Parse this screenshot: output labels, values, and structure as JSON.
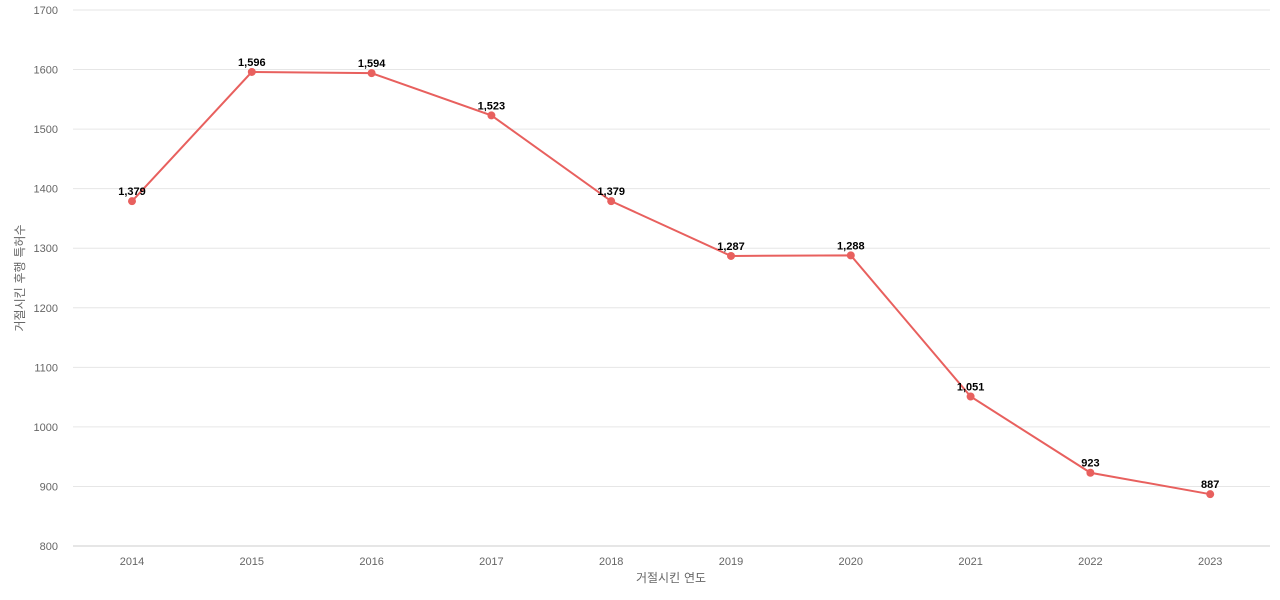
{
  "chart_data": {
    "type": "line",
    "title": "",
    "xlabel": "거절시킨 연도",
    "ylabel": "거절시킨 후행 특허수",
    "categories": [
      "2014",
      "2015",
      "2016",
      "2017",
      "2018",
      "2019",
      "2020",
      "2021",
      "2022",
      "2023"
    ],
    "values": [
      1379,
      1596,
      1594,
      1523,
      1379,
      1287,
      1288,
      1051,
      923,
      887
    ],
    "value_labels": [
      "1,379",
      "1,596",
      "1,594",
      "1,523",
      "1,379",
      "1,287",
      "1,288",
      "1,051",
      "923",
      "887"
    ],
    "ylim": [
      800,
      1700
    ],
    "yticks": [
      "800",
      "900",
      "1000",
      "1100",
      "1200",
      "1300",
      "1400",
      "1500",
      "1600",
      "1700"
    ],
    "grid": true,
    "legend": "none",
    "line_color": "#e8605e"
  }
}
